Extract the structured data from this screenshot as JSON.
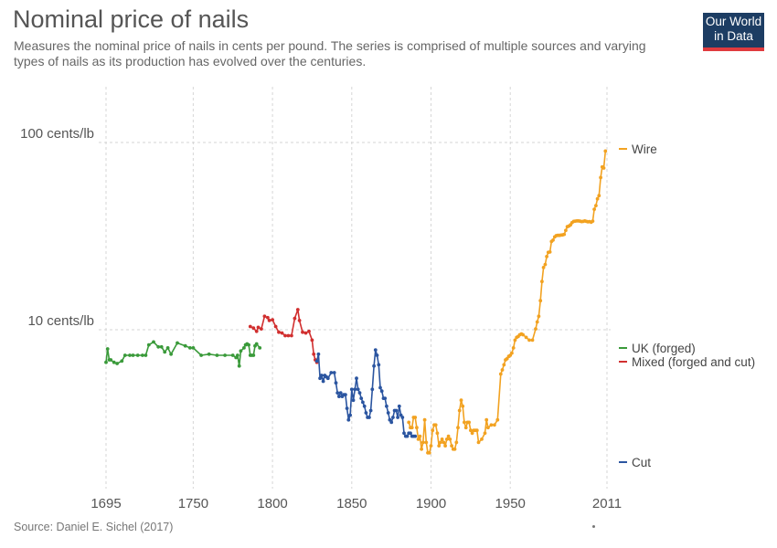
{
  "title": "Nominal price of nails",
  "subtitle": "Measures the nominal price of nails in cents per pound. The series is comprised of multiple sources and varying types of nails as its production has evolved over the centuries.",
  "logo": {
    "line1": "Our World",
    "line2": "in Data"
  },
  "source": "Source: Daniel E. Sichel (2017)",
  "colors": {
    "uk": "#3a9a3a",
    "mixed": "#d12f2f",
    "cut": "#2b55a0",
    "wire": "#f2a221",
    "grid": "#d6d6d6",
    "logo_bg": "#1d3d63",
    "logo_bar": "#e03a3e"
  },
  "chart_data": {
    "type": "line",
    "title": "Nominal price of nails",
    "ylabel": "",
    "xlabel": "",
    "yscale": "log",
    "xlim": [
      1695,
      2011
    ],
    "ylim": [
      2.2,
      120
    ],
    "grid": true,
    "legend_position": "right",
    "x_ticks": [
      1695,
      1750,
      1800,
      1850,
      1900,
      1950,
      2011
    ],
    "y_ticks": [
      {
        "value": 10,
        "label": "10 cents/lb"
      },
      {
        "value": 100,
        "label": "100 cents/lb"
      }
    ],
    "series": [
      {
        "name": "UK (forged)",
        "color": "#3a9a3a",
        "x": [
          1695,
          1696,
          1697,
          1698,
          1700,
          1702,
          1705,
          1707,
          1710,
          1712,
          1715,
          1718,
          1720,
          1722,
          1725,
          1728,
          1730,
          1732,
          1734,
          1736,
          1740,
          1745,
          1748,
          1750,
          1755,
          1760,
          1765,
          1770,
          1775,
          1777,
          1778,
          1779,
          1780,
          1782,
          1783,
          1784,
          1785,
          1786,
          1787,
          1788,
          1789,
          1790,
          1792
        ],
        "y": [
          6.7,
          7.9,
          6.9,
          6.9,
          6.7,
          6.6,
          6.8,
          7.3,
          7.3,
          7.3,
          7.3,
          7.3,
          7.3,
          8.3,
          8.6,
          8.1,
          8.1,
          7.6,
          8.0,
          7.4,
          8.5,
          8.2,
          8.0,
          8.0,
          7.3,
          7.4,
          7.3,
          7.3,
          7.3,
          7.1,
          7.3,
          6.4,
          7.7,
          8.0,
          8.3,
          8.4,
          8.3,
          7.3,
          7.3,
          7.3,
          8.2,
          8.4,
          8.0
        ]
      },
      {
        "name": "Mixed (forged and cut)",
        "color": "#d12f2f",
        "x": [
          1786,
          1788,
          1790,
          1791,
          1793,
          1795,
          1797,
          1798,
          1800,
          1802,
          1804,
          1806,
          1808,
          1810,
          1812,
          1814,
          1816,
          1817,
          1819,
          1821,
          1823,
          1825,
          1826,
          1827,
          1828
        ],
        "y": [
          10.4,
          10.2,
          9.8,
          10.3,
          10.1,
          11.8,
          11.6,
          11.2,
          11.3,
          10.4,
          9.7,
          9.6,
          9.3,
          9.3,
          9.3,
          11.5,
          12.8,
          11.2,
          9.7,
          9.6,
          9.8,
          8.8,
          7.4,
          6.9,
          6.7
        ]
      },
      {
        "name": "Cut",
        "color": "#2b55a0",
        "x": [
          1828,
          1829,
          1830,
          1831,
          1832,
          1833,
          1834,
          1835,
          1837,
          1839,
          1840,
          1841,
          1842,
          1843,
          1844,
          1845,
          1846,
          1847,
          1848,
          1849,
          1850,
          1851,
          1852,
          1853,
          1854,
          1855,
          1856,
          1857,
          1858,
          1859,
          1860,
          1861,
          1862,
          1863,
          1864,
          1865,
          1866,
          1867,
          1868,
          1869,
          1870,
          1871,
          1872,
          1873,
          1874,
          1875,
          1876,
          1877,
          1878,
          1879,
          1880,
          1881,
          1882,
          1883,
          1884,
          1885,
          1886,
          1887,
          1888,
          1889,
          1890
        ],
        "y": [
          6.8,
          7.4,
          5.5,
          5.7,
          5.3,
          5.7,
          5.6,
          5.5,
          5.9,
          5.9,
          5.2,
          4.6,
          4.4,
          4.6,
          4.4,
          4.5,
          4.5,
          3.8,
          3.3,
          3.5,
          4.8,
          4.2,
          4.8,
          5.5,
          4.8,
          4.6,
          4.3,
          4.1,
          3.9,
          3.6,
          3.4,
          3.4,
          3.7,
          4.8,
          6.4,
          7.8,
          7.3,
          6.5,
          4.9,
          4.7,
          4.3,
          4.3,
          3.9,
          3.6,
          3.3,
          3.2,
          3.4,
          3.7,
          3.7,
          3.4,
          3.9,
          3.5,
          3.4,
          2.8,
          2.7,
          2.7,
          2.8,
          2.8,
          2.7,
          2.7,
          2.7
        ]
      },
      {
        "name": "Wire",
        "color": "#f2a221",
        "x": [
          1886,
          1887,
          1888,
          1889,
          1890,
          1891,
          1892,
          1893,
          1894,
          1895,
          1896,
          1897,
          1898,
          1899,
          1900,
          1901,
          1902,
          1903,
          1904,
          1905,
          1906,
          1907,
          1908,
          1909,
          1910,
          1911,
          1912,
          1913,
          1914,
          1915,
          1916,
          1917,
          1918,
          1919,
          1920,
          1921,
          1922,
          1923,
          1924,
          1925,
          1926,
          1927,
          1928,
          1929,
          1930,
          1932,
          1934,
          1935,
          1936,
          1938,
          1940,
          1942,
          1944,
          1945,
          1946,
          1947,
          1948,
          1949,
          1950,
          1951,
          1952,
          1953,
          1954,
          1955,
          1956,
          1957,
          1958,
          1960,
          1962,
          1964,
          1966,
          1967,
          1968,
          1969,
          1970,
          1971,
          1972,
          1973,
          1974,
          1975,
          1976,
          1977,
          1978,
          1979,
          1980,
          1981,
          1982,
          1983,
          1984,
          1985,
          1986,
          1987,
          1988,
          1989,
          1990,
          1991,
          1992,
          1993,
          1994,
          1995,
          1996,
          1997,
          1998,
          1999,
          2000,
          2001,
          2002,
          2003,
          2004,
          2005,
          2006,
          2007,
          2008,
          2009,
          2010
        ],
        "y": [
          3.2,
          3.0,
          3.0,
          3.4,
          3.4,
          3.0,
          2.6,
          2.7,
          2.3,
          2.5,
          3.3,
          2.5,
          2.2,
          2.2,
          2.4,
          2.9,
          3.1,
          3.1,
          2.8,
          2.4,
          2.5,
          2.6,
          2.5,
          2.4,
          2.6,
          2.7,
          2.6,
          2.4,
          2.3,
          2.3,
          2.5,
          3.0,
          3.7,
          4.2,
          3.9,
          3.2,
          3.0,
          3.2,
          3.2,
          2.9,
          2.8,
          2.9,
          2.9,
          2.9,
          2.5,
          2.6,
          2.8,
          3.3,
          3.0,
          3.1,
          3.1,
          3.3,
          5.8,
          6.1,
          6.5,
          6.9,
          7.0,
          7.2,
          7.3,
          7.5,
          8.0,
          8.8,
          9.1,
          9.2,
          9.4,
          9.5,
          9.4,
          9.1,
          8.8,
          8.8,
          10.1,
          11.0,
          11.8,
          14.3,
          18.1,
          21.5,
          22.3,
          24.6,
          25.9,
          26.0,
          29.6,
          30.1,
          31.3,
          31.8,
          31.9,
          31.9,
          32.0,
          32.1,
          32.3,
          33.9,
          35.5,
          35.8,
          36.3,
          37.3,
          37.9,
          38.0,
          38.1,
          38.1,
          38.0,
          37.8,
          37.9,
          38.1,
          37.9,
          37.7,
          37.8,
          37.5,
          38.0,
          44.0,
          46.0,
          50.0,
          52.0,
          65.0,
          74.0,
          73.0,
          90.0
        ]
      }
    ]
  }
}
